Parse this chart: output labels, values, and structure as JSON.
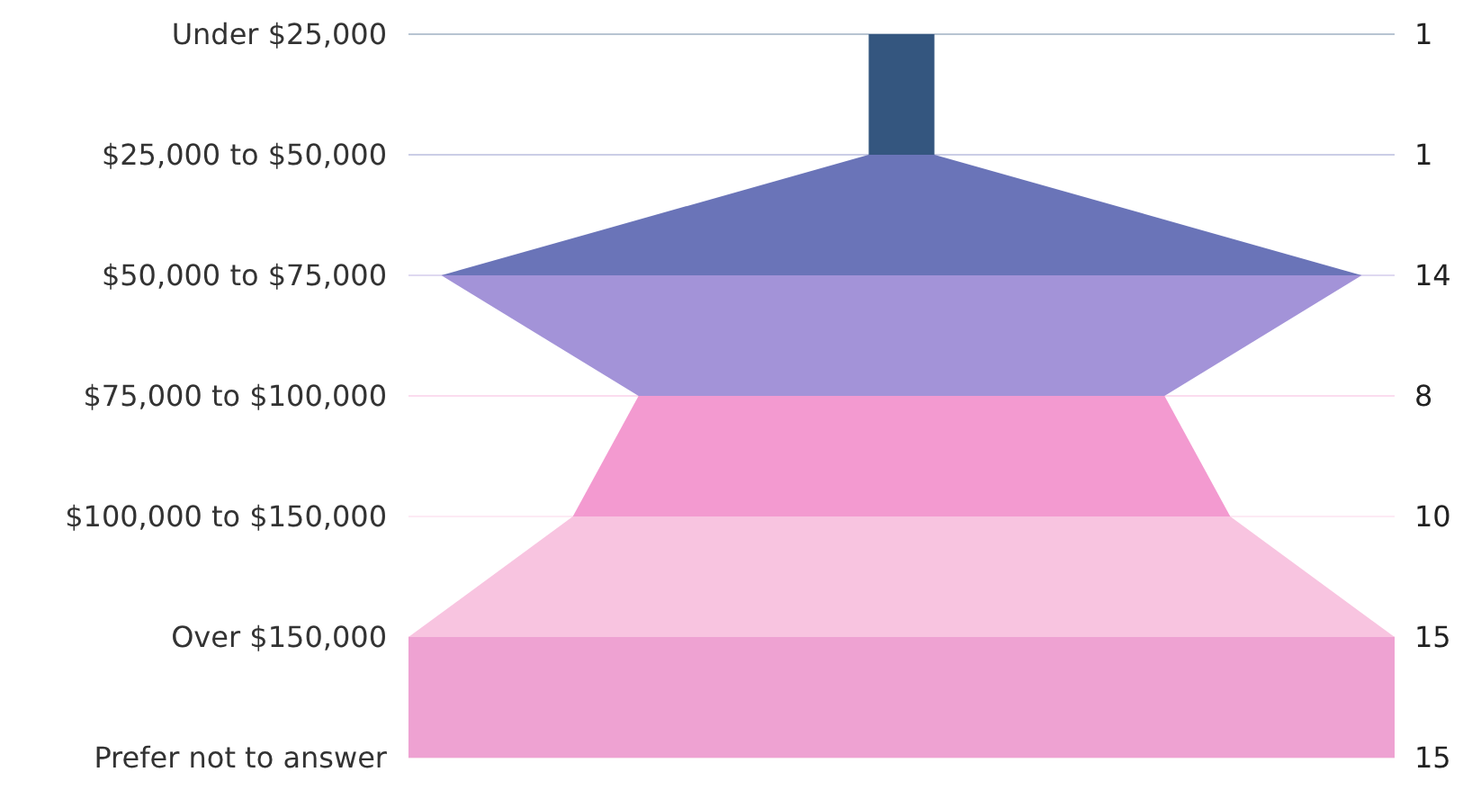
{
  "chart_data": {
    "type": "other",
    "categories": [
      "Under $25,000",
      "$25,000 to $50,000",
      "$50,000 to $75,000",
      "$75,000 to $100,000",
      "$100,000 to $150,000",
      "Over $150,000",
      "Prefer not to answer"
    ],
    "values": [
      1,
      1,
      14,
      8,
      10,
      15,
      15
    ],
    "colors": [
      "#34567f",
      "#6a74b8",
      "#a393d8",
      "#f39ad0",
      "#f8c4e0",
      "#eea2d2",
      "#e8a8cc"
    ],
    "data_labels": true
  }
}
